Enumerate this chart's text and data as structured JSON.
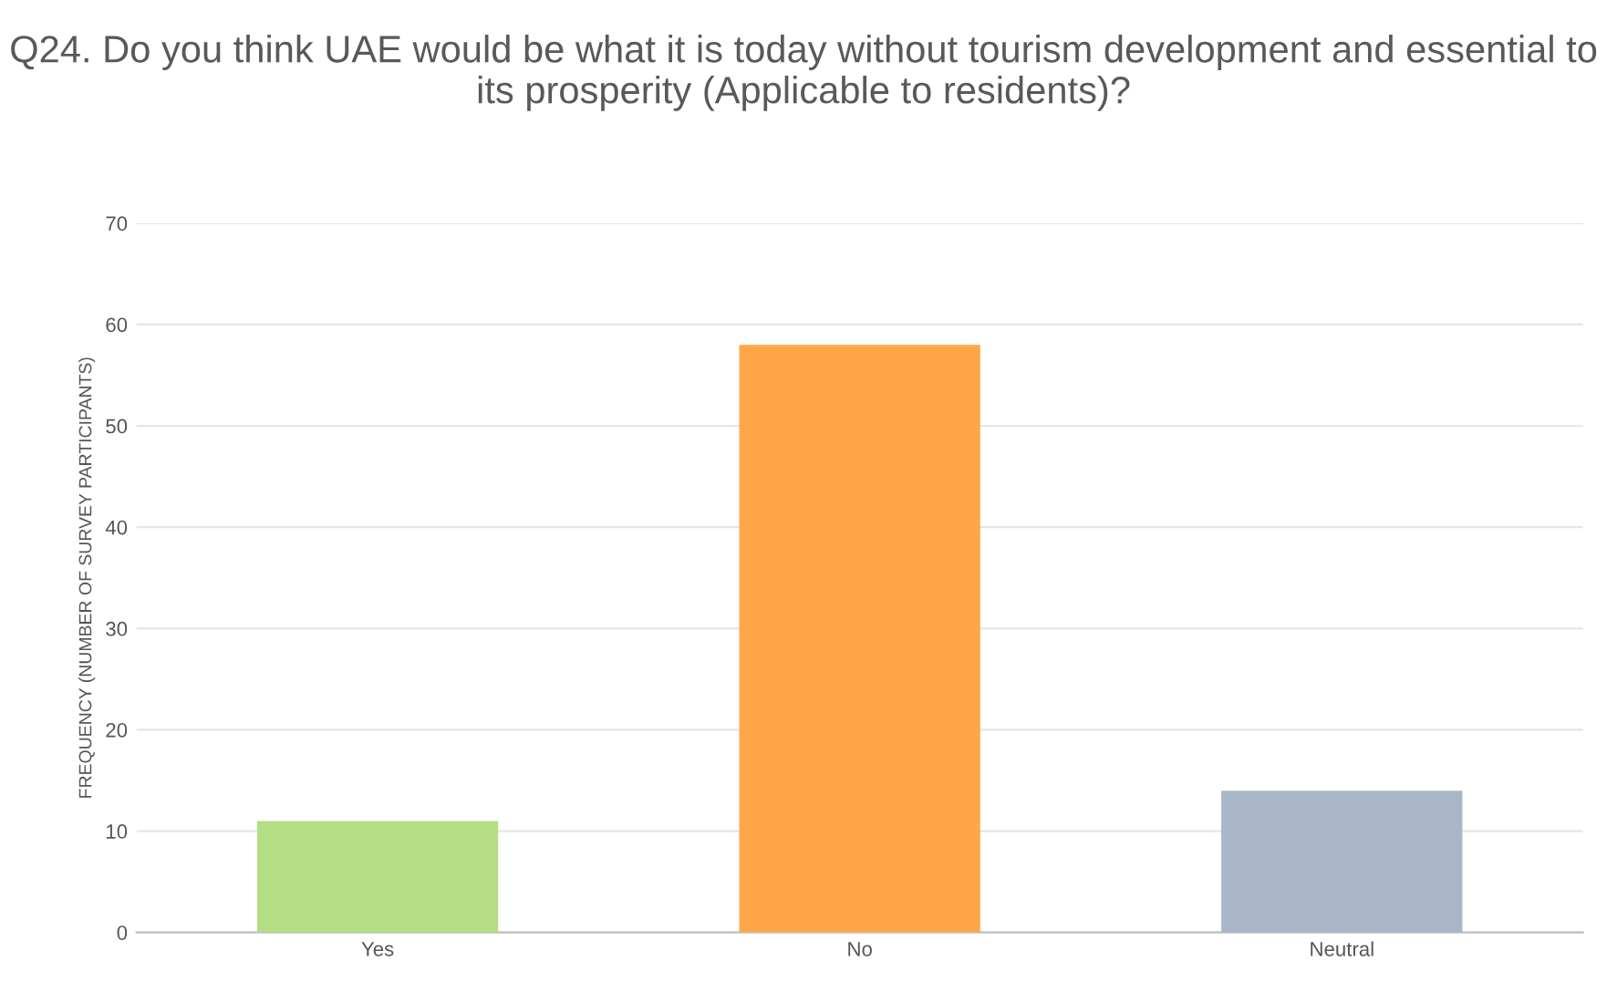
{
  "chart_data": {
    "type": "bar",
    "title": "Q24. Do you think UAE would be what it is today without tourism development and essential to its prosperity (Applicable to residents)?",
    "ylabel": "FREQUENCY (NUMBER OF SURVEY PARTICIPANTS)",
    "categories": [
      "Yes",
      "No",
      "Neutral"
    ],
    "values": [
      11,
      58,
      14
    ],
    "colors": [
      "#b3de83",
      "#ffa748",
      "#a8b6c8"
    ],
    "ylim": [
      0,
      70
    ],
    "yticks": [
      0,
      10,
      20,
      30,
      40,
      50,
      60,
      70
    ],
    "grid": "y"
  }
}
